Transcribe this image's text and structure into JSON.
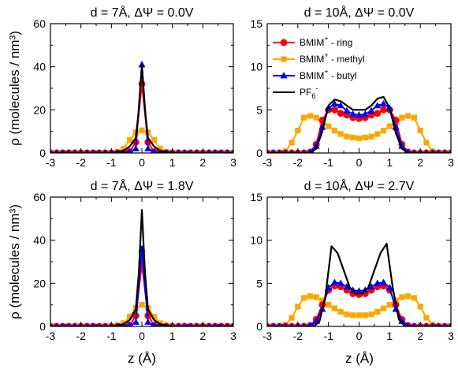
{
  "figure": {
    "ylabel": "ρ (molecules / nm³)",
    "xlabel": "z (Å)"
  },
  "legend": [
    {
      "series": "ring",
      "base": "BMIM",
      "sup": "+",
      "suffix": " - ring"
    },
    {
      "series": "methyl",
      "base": "BMIM",
      "sup": "+",
      "suffix": " - methyl"
    },
    {
      "series": "butyl",
      "base": "BMIM",
      "sup": "+",
      "suffix": " - butyl"
    },
    {
      "series": "pf6",
      "base": "PF",
      "sub": "6",
      "sup": "-",
      "suffix": ""
    }
  ],
  "styles": {
    "ring": {
      "color": "#ff0000",
      "marker": "circle"
    },
    "methyl": {
      "color": "#ffa500",
      "marker": "square"
    },
    "butyl": {
      "color": "#0000ff",
      "marker": "triangle"
    },
    "pf6": {
      "color": "#000000",
      "marker": "none"
    }
  },
  "chart_data": [
    {
      "type": "line",
      "title": "d = 7Å, ΔΨ = 0.0V",
      "xlim": [
        -3,
        3
      ],
      "ylim": [
        0,
        60
      ],
      "xticks": [
        -3,
        -2,
        -1,
        0,
        1,
        2,
        3
      ],
      "yticks": [
        0,
        20,
        40,
        60
      ],
      "series": [
        {
          "key": "methyl",
          "x": [
            -3.0,
            -2.8,
            -2.6,
            -2.4,
            -2.2,
            -2.0,
            -1.8,
            -1.6,
            -1.4,
            -1.2,
            -1.0,
            -0.8,
            -0.6,
            -0.4,
            -0.2,
            0.0,
            0.2,
            0.4,
            0.6,
            0.8,
            1.0,
            1.2,
            1.4,
            1.6,
            1.8,
            2.0,
            2.2,
            2.4,
            2.6,
            2.8,
            3.0
          ],
          "y": [
            0,
            0,
            0,
            0,
            0,
            0,
            0,
            0,
            0,
            0,
            0,
            0.5,
            2,
            6,
            9.5,
            10.5,
            9.5,
            6,
            2,
            0.5,
            0,
            0,
            0,
            0,
            0,
            0,
            0,
            0,
            0,
            0,
            0
          ]
        },
        {
          "key": "ring",
          "x": [
            -3.0,
            -2.8,
            -2.6,
            -2.4,
            -2.2,
            -2.0,
            -1.8,
            -1.6,
            -1.4,
            -1.2,
            -1.0,
            -0.8,
            -0.6,
            -0.4,
            -0.2,
            0.0,
            0.2,
            0.4,
            0.6,
            0.8,
            1.0,
            1.2,
            1.4,
            1.6,
            1.8,
            2.0,
            2.2,
            2.4,
            2.6,
            2.8,
            3.0
          ],
          "y": [
            0,
            0,
            0,
            0,
            0,
            0,
            0,
            0,
            0,
            0,
            0,
            0,
            0,
            0.5,
            5,
            32,
            5,
            0.5,
            0,
            0,
            0,
            0,
            0,
            0,
            0,
            0,
            0,
            0,
            0,
            0,
            0
          ]
        },
        {
          "key": "butyl",
          "x": [
            -3.0,
            -2.8,
            -2.6,
            -2.4,
            -2.2,
            -2.0,
            -1.8,
            -1.6,
            -1.4,
            -1.2,
            -1.0,
            -0.8,
            -0.6,
            -0.4,
            -0.2,
            0.0,
            0.2,
            0.4,
            0.6,
            0.8,
            1.0,
            1.2,
            1.4,
            1.6,
            1.8,
            2.0,
            2.2,
            2.4,
            2.6,
            2.8,
            3.0
          ],
          "y": [
            0,
            0,
            0,
            0,
            0,
            0,
            0,
            0,
            0,
            0,
            0,
            0,
            0,
            0.5,
            2,
            41,
            2,
            0.5,
            0,
            0,
            0,
            0,
            0,
            0,
            0,
            0,
            0,
            0,
            0,
            0,
            0
          ]
        },
        {
          "key": "pf6",
          "x": [
            -3.0,
            -1.0,
            -0.6,
            -0.4,
            -0.2,
            -0.1,
            0.0,
            0.1,
            0.2,
            0.4,
            0.6,
            1.0,
            3.0
          ],
          "y": [
            0,
            0,
            1,
            3,
            7,
            20,
            41,
            20,
            7,
            3,
            1,
            0,
            0
          ]
        }
      ]
    },
    {
      "type": "line",
      "title": "d = 10Å, ΔΨ = 0.0V",
      "xlim": [
        -3,
        3
      ],
      "ylim": [
        0,
        15
      ],
      "xticks": [
        -3,
        -2,
        -1,
        0,
        1,
        2,
        3
      ],
      "yticks": [
        0,
        5,
        10,
        15
      ],
      "series": [
        {
          "key": "methyl",
          "x": [
            -3.0,
            -2.8,
            -2.6,
            -2.4,
            -2.2,
            -2.0,
            -1.8,
            -1.6,
            -1.4,
            -1.2,
            -1.0,
            -0.8,
            -0.6,
            -0.4,
            -0.2,
            0.0,
            0.2,
            0.4,
            0.6,
            0.8,
            1.0,
            1.2,
            1.4,
            1.6,
            1.8,
            2.0,
            2.2,
            2.4,
            2.6,
            2.8,
            3.0
          ],
          "y": [
            0,
            0,
            0,
            0.2,
            1.2,
            2.6,
            4.1,
            4.3,
            4.1,
            3.5,
            3.1,
            2.6,
            2.2,
            1.9,
            1.8,
            1.7,
            1.8,
            1.9,
            2.2,
            2.6,
            3.1,
            3.5,
            4.1,
            4.3,
            4.1,
            2.6,
            1.2,
            0.2,
            0,
            0,
            0
          ]
        },
        {
          "key": "ring",
          "x": [
            -3.0,
            -2.8,
            -2.6,
            -2.4,
            -2.2,
            -2.0,
            -1.8,
            -1.6,
            -1.4,
            -1.2,
            -1.0,
            -0.8,
            -0.6,
            -0.4,
            -0.2,
            0.0,
            0.2,
            0.4,
            0.6,
            0.8,
            1.0,
            1.2,
            1.4,
            1.6,
            1.8,
            2.0,
            2.2,
            2.4,
            2.6,
            2.8,
            3.0
          ],
          "y": [
            0,
            0,
            0,
            0,
            0,
            0,
            0,
            0.1,
            1.0,
            3.8,
            5.0,
            5.0,
            4.6,
            4.4,
            4.1,
            4.0,
            4.1,
            4.4,
            4.6,
            5.0,
            5.0,
            3.8,
            1.0,
            0.1,
            0,
            0,
            0,
            0,
            0,
            0,
            0
          ]
        },
        {
          "key": "butyl",
          "x": [
            -3.0,
            -2.8,
            -2.6,
            -2.4,
            -2.2,
            -2.0,
            -1.8,
            -1.6,
            -1.4,
            -1.2,
            -1.0,
            -0.8,
            -0.6,
            -0.4,
            -0.2,
            0.0,
            0.2,
            0.4,
            0.6,
            0.8,
            1.0,
            1.2,
            1.4,
            1.6,
            1.8,
            2.0,
            2.2,
            2.4,
            2.6,
            2.8,
            3.0
          ],
          "y": [
            0,
            0,
            0,
            0,
            0,
            0,
            0,
            0.1,
            0.8,
            3.0,
            5.2,
            5.7,
            5.5,
            4.9,
            4.5,
            4.4,
            4.5,
            4.9,
            5.5,
            5.7,
            5.2,
            3.0,
            0.8,
            0.1,
            0,
            0,
            0,
            0,
            0,
            0,
            0
          ]
        },
        {
          "key": "pf6",
          "x": [
            -3.0,
            -1.6,
            -1.4,
            -1.2,
            -1.0,
            -0.8,
            -0.6,
            -0.4,
            -0.2,
            0.0,
            0.2,
            0.4,
            0.6,
            0.8,
            1.0,
            1.2,
            1.4,
            1.6,
            3.0
          ],
          "y": [
            0,
            0,
            0.5,
            2.5,
            5.5,
            6.2,
            6.0,
            5.5,
            5.0,
            5.0,
            5.0,
            5.5,
            6.3,
            6.5,
            5.2,
            2.3,
            0.5,
            0,
            0
          ]
        }
      ]
    },
    {
      "type": "line",
      "title": "d = 7Å, ΔΨ = 1.8V",
      "xlim": [
        -3,
        3
      ],
      "ylim": [
        0,
        60
      ],
      "xticks": [
        -3,
        -2,
        -1,
        0,
        1,
        2,
        3
      ],
      "yticks": [
        0,
        20,
        40,
        60
      ],
      "series": [
        {
          "key": "methyl",
          "x": [
            -3.0,
            -2.8,
            -2.6,
            -2.4,
            -2.2,
            -2.0,
            -1.8,
            -1.6,
            -1.4,
            -1.2,
            -1.0,
            -0.8,
            -0.6,
            -0.4,
            -0.2,
            0.0,
            0.2,
            0.4,
            0.6,
            0.8,
            1.0,
            1.2,
            1.4,
            1.6,
            1.8,
            2.0,
            2.2,
            2.4,
            2.6,
            2.8,
            3.0
          ],
          "y": [
            0,
            0,
            0,
            0,
            0,
            0,
            0,
            0,
            0,
            0,
            0,
            0.5,
            1.5,
            4.5,
            8.5,
            10,
            8.5,
            4.5,
            1.5,
            0.5,
            0,
            0,
            0,
            0,
            0,
            0,
            0,
            0,
            0,
            0,
            0
          ]
        },
        {
          "key": "ring",
          "x": [
            -3.0,
            -2.8,
            -2.6,
            -2.4,
            -2.2,
            -2.0,
            -1.8,
            -1.6,
            -1.4,
            -1.2,
            -1.0,
            -0.8,
            -0.6,
            -0.4,
            -0.2,
            0.0,
            0.2,
            0.4,
            0.6,
            0.8,
            1.0,
            1.2,
            1.4,
            1.6,
            1.8,
            2.0,
            2.2,
            2.4,
            2.6,
            2.8,
            3.0
          ],
          "y": [
            0,
            0,
            0,
            0,
            0,
            0,
            0,
            0,
            0,
            0,
            0,
            0,
            0,
            0.5,
            5,
            29,
            5,
            0.5,
            0,
            0,
            0,
            0,
            0,
            0,
            0,
            0,
            0,
            0,
            0,
            0,
            0
          ]
        },
        {
          "key": "butyl",
          "x": [
            -3.0,
            -2.8,
            -2.6,
            -2.4,
            -2.2,
            -2.0,
            -1.8,
            -1.6,
            -1.4,
            -1.2,
            -1.0,
            -0.8,
            -0.6,
            -0.4,
            -0.2,
            0.0,
            0.2,
            0.4,
            0.6,
            0.8,
            1.0,
            1.2,
            1.4,
            1.6,
            1.8,
            2.0,
            2.2,
            2.4,
            2.6,
            2.8,
            3.0
          ],
          "y": [
            0,
            0,
            0,
            0,
            0,
            0,
            0,
            0,
            0,
            0,
            0,
            0,
            0,
            0.5,
            2,
            36,
            2,
            0.5,
            0,
            0,
            0,
            0,
            0,
            0,
            0,
            0,
            0,
            0,
            0,
            0,
            0
          ]
        },
        {
          "key": "pf6",
          "x": [
            -3.0,
            -1.0,
            -0.6,
            -0.4,
            -0.2,
            -0.1,
            0.0,
            0.1,
            0.2,
            0.4,
            0.6,
            1.0,
            3.0
          ],
          "y": [
            0,
            0,
            1,
            3,
            8,
            25,
            54,
            25,
            8,
            3,
            1,
            0,
            0
          ]
        }
      ]
    },
    {
      "type": "line",
      "title": "d = 10Å, ΔΨ = 2.7V",
      "xlim": [
        -3,
        3
      ],
      "ylim": [
        0,
        15
      ],
      "xticks": [
        -3,
        -2,
        -1,
        0,
        1,
        2,
        3
      ],
      "yticks": [
        0,
        5,
        10,
        15
      ],
      "series": [
        {
          "key": "methyl",
          "x": [
            -3.0,
            -2.8,
            -2.6,
            -2.4,
            -2.2,
            -2.0,
            -1.8,
            -1.6,
            -1.4,
            -1.2,
            -1.0,
            -0.8,
            -0.6,
            -0.4,
            -0.2,
            0.0,
            0.2,
            0.4,
            0.6,
            0.8,
            1.0,
            1.2,
            1.4,
            1.6,
            1.8,
            2.0,
            2.2,
            2.4,
            2.6,
            2.8,
            3.0
          ],
          "y": [
            0,
            0,
            0,
            0.2,
            1.0,
            2.3,
            3.3,
            3.5,
            3.4,
            3.0,
            2.5,
            2.1,
            1.7,
            1.4,
            1.3,
            1.3,
            1.3,
            1.4,
            1.7,
            2.1,
            2.5,
            3.0,
            3.4,
            3.5,
            3.3,
            2.3,
            1.0,
            0.2,
            0,
            0,
            0
          ]
        },
        {
          "key": "ring",
          "x": [
            -3.0,
            -2.8,
            -2.6,
            -2.4,
            -2.2,
            -2.0,
            -1.8,
            -1.6,
            -1.4,
            -1.2,
            -1.0,
            -0.8,
            -0.6,
            -0.4,
            -0.2,
            0.0,
            0.2,
            0.4,
            0.6,
            0.8,
            1.0,
            1.2,
            1.4,
            1.6,
            1.8,
            2.0,
            2.2,
            2.4,
            2.6,
            2.8,
            3.0
          ],
          "y": [
            0,
            0,
            0,
            0,
            0,
            0,
            0,
            0.1,
            0.8,
            2.5,
            4.2,
            4.7,
            4.6,
            4.2,
            3.8,
            3.7,
            3.8,
            4.2,
            4.6,
            4.7,
            4.2,
            2.5,
            0.8,
            0.1,
            0,
            0,
            0,
            0,
            0,
            0,
            0
          ]
        },
        {
          "key": "butyl",
          "x": [
            -3.0,
            -2.8,
            -2.6,
            -2.4,
            -2.2,
            -2.0,
            -1.8,
            -1.6,
            -1.4,
            -1.2,
            -1.0,
            -0.8,
            -0.6,
            -0.4,
            -0.2,
            0.0,
            0.2,
            0.4,
            0.6,
            0.8,
            1.0,
            1.2,
            1.4,
            1.6,
            1.8,
            2.0,
            2.2,
            2.4,
            2.6,
            2.8,
            3.0
          ],
          "y": [
            0,
            0,
            0,
            0,
            0,
            0,
            0,
            0.1,
            0.6,
            2.0,
            4.5,
            5.1,
            5.0,
            4.6,
            4.2,
            4.1,
            4.2,
            4.6,
            5.0,
            5.1,
            4.5,
            2.0,
            0.6,
            0.1,
            0,
            0,
            0,
            0,
            0,
            0,
            0
          ]
        },
        {
          "key": "pf6",
          "x": [
            -3.0,
            -1.5,
            -1.3,
            -1.1,
            -0.9,
            -0.7,
            -0.5,
            -0.3,
            -0.1,
            0.0,
            0.1,
            0.3,
            0.5,
            0.7,
            0.9,
            1.1,
            1.3,
            1.5,
            3.0
          ],
          "y": [
            0,
            0,
            0.5,
            3.5,
            9.3,
            8.5,
            6.5,
            4.5,
            3.8,
            3.8,
            3.8,
            4.5,
            6.5,
            8.5,
            9.6,
            4.5,
            0.8,
            0,
            0
          ]
        }
      ]
    }
  ]
}
